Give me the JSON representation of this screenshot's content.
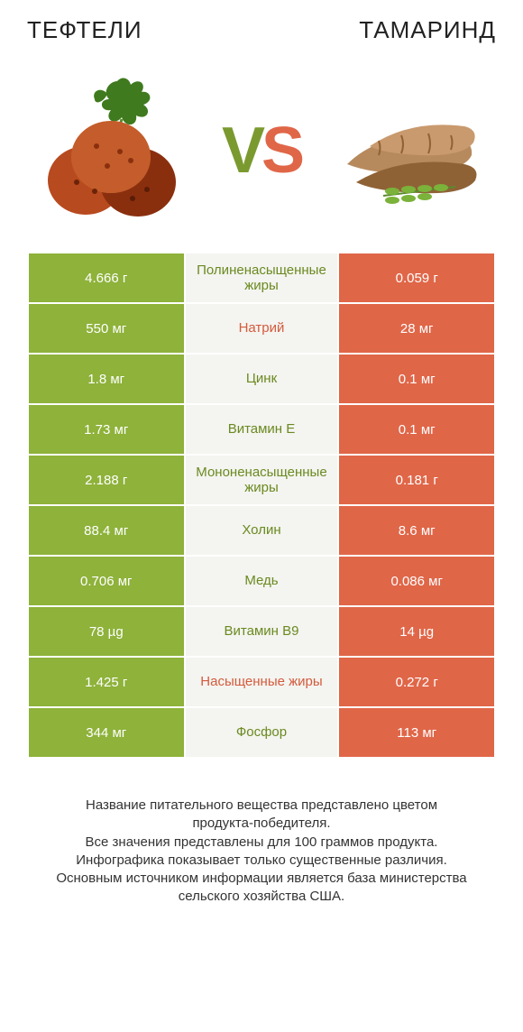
{
  "header": {
    "left_title": "ТЕФТЕЛИ",
    "right_title": "ТАМАРИНД"
  },
  "vs": {
    "v": "V",
    "s": "S"
  },
  "colors": {
    "left_bg": "#8eb23a",
    "right_bg": "#e06648",
    "mid_bg": "#f4f4f0",
    "label_green": "#6a8a20",
    "label_orange": "#d35b3d",
    "page_bg": "#ffffff",
    "text": "#222222"
  },
  "illustration": {
    "meatball_main": "#b84a1f",
    "meatball_dark": "#8a2f0e",
    "meatball_light": "#d87a3e",
    "herb_green": "#3f7a1e",
    "herb_light": "#6faa3a",
    "tamarind_pod": "#b78a5e",
    "tamarind_pod_dark": "#8f6236",
    "tamarind_leaf": "#7bb23a"
  },
  "rows": [
    {
      "left": "4.666 г",
      "label": "Полиненасыщенные жиры",
      "label_color": "green",
      "right": "0.059 г"
    },
    {
      "left": "550 мг",
      "label": "Натрий",
      "label_color": "orange",
      "right": "28 мг"
    },
    {
      "left": "1.8 мг",
      "label": "Цинк",
      "label_color": "green",
      "right": "0.1 мг"
    },
    {
      "left": "1.73 мг",
      "label": "Витамин E",
      "label_color": "green",
      "right": "0.1 мг"
    },
    {
      "left": "2.188 г",
      "label": "Мононенасыщенные жиры",
      "label_color": "green",
      "right": "0.181 г"
    },
    {
      "left": "88.4 мг",
      "label": "Холин",
      "label_color": "green",
      "right": "8.6 мг"
    },
    {
      "left": "0.706 мг",
      "label": "Медь",
      "label_color": "green",
      "right": "0.086 мг"
    },
    {
      "left": "78 µg",
      "label": "Витамин B9",
      "label_color": "green",
      "right": "14 µg"
    },
    {
      "left": "1.425 г",
      "label": "Насыщенные жиры",
      "label_color": "orange",
      "right": "0.272 г"
    },
    {
      "left": "344 мг",
      "label": "Фосфор",
      "label_color": "green",
      "right": "113 мг"
    }
  ],
  "footer": {
    "l1": "Название питательного вещества представлено цветом",
    "l2": "продукта-победителя.",
    "l3": "Все значения представлены для 100 граммов продукта.",
    "l4": "Инфографика показывает только существенные различия.",
    "l5": "Основным источником информации является база министерства",
    "l6": "сельского хозяйства США."
  }
}
